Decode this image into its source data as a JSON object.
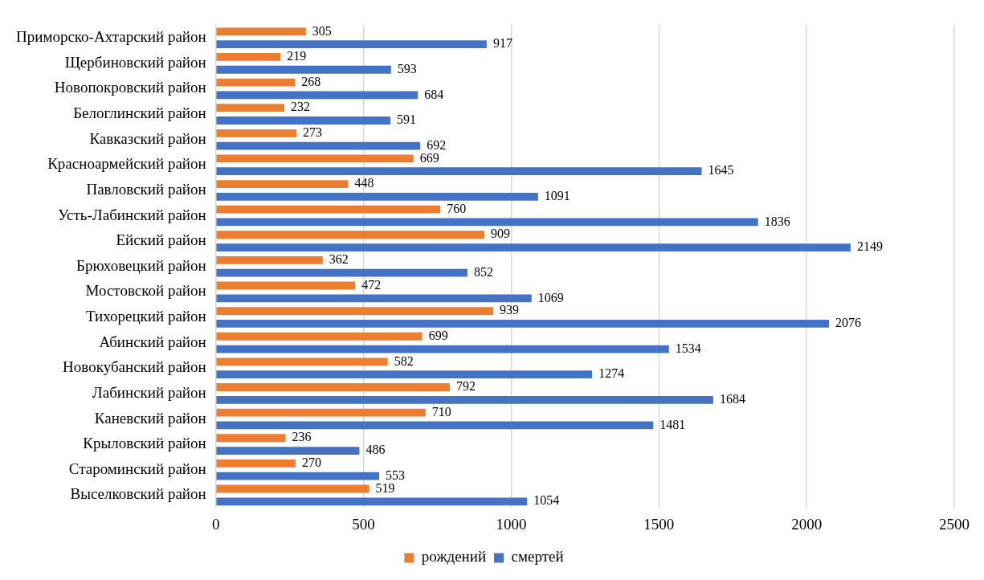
{
  "chart_data": {
    "type": "bar",
    "orientation": "horizontal",
    "categories": [
      "Приморско-Ахтарский район",
      "Щербиновский район",
      "Новопокровский район",
      "Белоглинский район",
      "Кавказский район",
      "Красноармейский район",
      "Павловский район",
      "Усть-Лабинский район",
      "Ейский район",
      "Брюховецкий район",
      "Мостовской район",
      "Тихорецкий район",
      "Абинский район",
      "Новокубанский район",
      "Лабинский район",
      "Каневский район",
      "Крыловский район",
      "Староминский район",
      "Выселковский район"
    ],
    "series": [
      {
        "name": "рождений",
        "color": "#ed7d31",
        "values": [
          305,
          219,
          268,
          232,
          273,
          669,
          448,
          760,
          909,
          362,
          472,
          939,
          699,
          582,
          792,
          710,
          236,
          270,
          519
        ]
      },
      {
        "name": "смертей",
        "color": "#4472c4",
        "values": [
          917,
          593,
          684,
          591,
          692,
          1645,
          1091,
          1836,
          2149,
          852,
          1069,
          2076,
          1534,
          1274,
          1684,
          1481,
          486,
          553,
          1054
        ]
      }
    ],
    "xlim": [
      0,
      2500
    ],
    "xticks": [
      0,
      500,
      1000,
      1500,
      2000,
      2500
    ],
    "grid": "x",
    "legend": "bottom",
    "data_labels": true
  }
}
